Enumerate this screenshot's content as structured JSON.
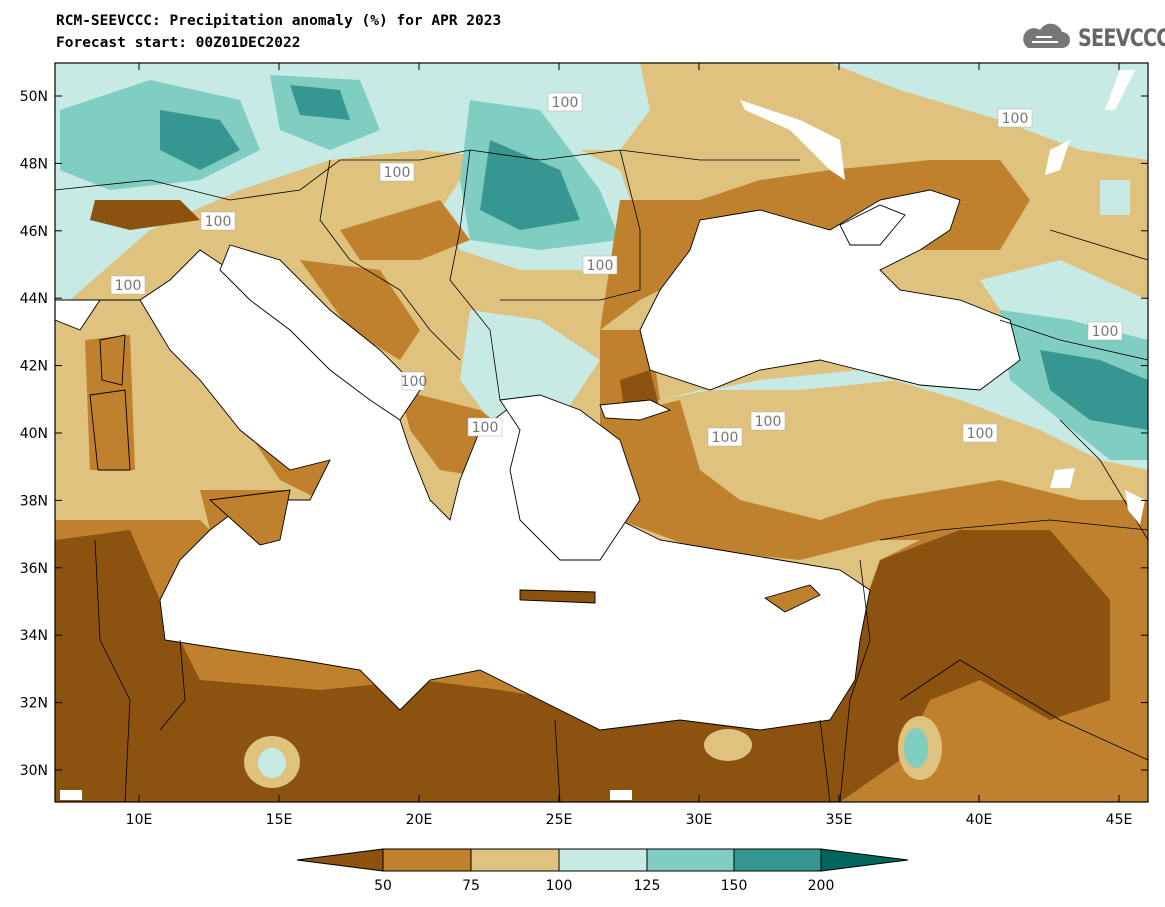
{
  "header": {
    "title": "RCM-SEEVCCC: Precipitation anomaly (%) for APR 2023",
    "subtitle": "Forecast start: 00Z01DEC2022",
    "logo_text": "SEEVCCC",
    "logo_icon": "cloud-icon"
  },
  "map": {
    "lon_ticks": [
      "10E",
      "15E",
      "20E",
      "25E",
      "30E",
      "35E",
      "40E",
      "45E"
    ],
    "lat_ticks": [
      "50N",
      "48N",
      "46N",
      "44N",
      "42N",
      "40N",
      "38N",
      "36N",
      "34N",
      "32N",
      "30N"
    ],
    "contour_labels": [
      "100",
      "100",
      "100",
      "100",
      "100",
      "100",
      "100",
      "100",
      "100",
      "100",
      "100",
      "100",
      "100"
    ],
    "ocean_color": "#ffffff",
    "coastline_color": "#000000"
  },
  "legend": {
    "ticks": [
      "50",
      "75",
      "100",
      "125",
      "150",
      "200"
    ],
    "colors": {
      "below_50": "#8b5210",
      "50_75": "#bf812d",
      "75_100": "#dfc27d",
      "100_125": "#c7eae5",
      "125_150": "#80cdc1",
      "150_200": "#35978f",
      "above_200": "#01665e"
    }
  }
}
